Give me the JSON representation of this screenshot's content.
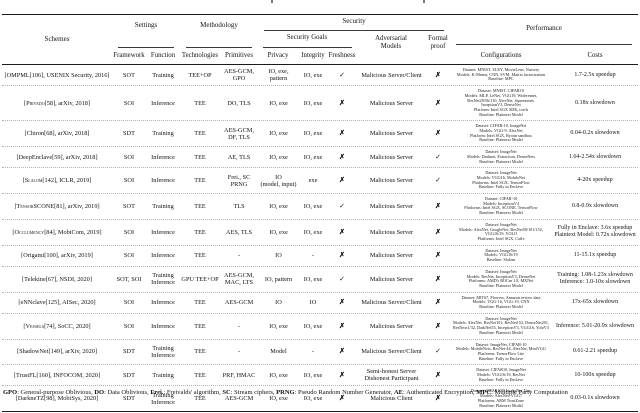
{
  "table": {
    "header": {
      "schemes": "Schemes",
      "groups": {
        "settings": "Settings",
        "methodology": "Methodology",
        "security": "Security",
        "security_goals": "Security Goals",
        "adversarial": "Adversarial\nModels",
        "formal": "Formal\nproof",
        "performance": "Performance"
      },
      "columns": {
        "framework": "Framework",
        "function": "Function",
        "technologies": "Technologies",
        "primitives": "Primitives",
        "privacy": "Privacy",
        "integrity": "Integrity",
        "freshness": "Freshness",
        "configurations": "Configurations",
        "costs": "Costs"
      }
    },
    "symbols": {
      "yes": "✓",
      "no": "✗"
    },
    "rows": [
      {
        "scheme": {
          "name": "OMPML",
          "ref": "106",
          "venue": "USENIX Security",
          "year": "2016",
          "smallcaps": false
        },
        "framework": "SOT",
        "function": "Training",
        "technologies": "TEE+OP",
        "primitives": "AES-GCM,\nGPO",
        "privacy": "IO, exe, pattern",
        "integrity": "IO, exe",
        "freshness": true,
        "adversarial": "Malicious Server/Client",
        "formal_proof": false,
        "configurations": [
          "Dataset: MNIST, SUSY, MovieLens, Nursery",
          "Models: K-Means, CNN, SVM, Matrix factorization",
          "Baseline: MPC"
        ],
        "costs": [
          "1.7-2.5x speedup"
        ]
      },
      {
        "scheme": {
          "name": "Privado",
          "ref": "58",
          "venue": "arXiv",
          "year": "2018",
          "smallcaps": true
        },
        "framework": "SOI",
        "function": "Inference",
        "technologies": "TEE",
        "primitives": "DO, TLS",
        "privacy": "IO, exe",
        "integrity": "IO, exe",
        "freshness": false,
        "adversarial": "Malicious Server",
        "formal_proof": false,
        "configurations": [
          "Dataset: MNIST, CIFAR10",
          "Models: MLP, LeNet, VGG19, Wideresnet,",
          "ResNet29/56/110, AlexNet, Squeezenet,",
          "InceptionV3, DenseNet",
          "Platform: Intel SGX SDK, torch",
          "Baseline: Plaintext Model"
        ],
        "costs": [
          "0.18x slowdown"
        ]
      },
      {
        "scheme": {
          "name": "Chiron",
          "ref": "68",
          "venue": "arXiv",
          "year": "2018",
          "smallcaps": false
        },
        "framework": "SDT",
        "function": "Training",
        "technologies": "TEE",
        "primitives": "AES-GCM,\nDF, TLS",
        "privacy": "IO, exe",
        "integrity": "IO, exe",
        "freshness": false,
        "adversarial": "Malicious Server",
        "formal_proof": false,
        "configurations": [
          "Dataset: CIFAR-10, ImageNet",
          "Models: VGG-9, AlexNet",
          "Platform: Intel SGX, Ryoan sandbox",
          "Baseline: Plaintext Model"
        ],
        "costs": [
          "0.04-0.2x slowdown"
        ]
      },
      {
        "scheme": {
          "name": "DeepEnclave",
          "ref": "59",
          "venue": "arXiv",
          "year": "2018",
          "smallcaps": false
        },
        "framework": "SOI",
        "function": "Inference",
        "technologies": "TEE",
        "primitives": "AE, TLS",
        "privacy": "IO, exe",
        "integrity": "IO, exe",
        "freshness": false,
        "adversarial": "Malicious Server",
        "formal_proof": true,
        "configurations": [
          "Dataset: ImageNet",
          "Models: Darknet, Extraction, DenseNets",
          "Baseline: Plaintext Model"
        ],
        "costs": [
          "1.64-2.54x slowdown"
        ]
      },
      {
        "scheme": {
          "name": "Slalom",
          "ref": "142",
          "venue": "ICLR",
          "year": "2019",
          "smallcaps": true
        },
        "framework": "SOI",
        "function": "Inference",
        "technologies": "TEE",
        "primitives": "Frei., SC\nPRNG",
        "privacy": "IO\n(model, input)",
        "integrity": "exe",
        "freshness": false,
        "adversarial": "Malicious Server",
        "formal_proof": true,
        "configurations": [
          "Dataset: ImageNet",
          "Models: VGG16, MobileNet",
          "Platforms: Intel SGX, TensorFlow",
          "Baseline: Fully in Enclave"
        ],
        "costs": [
          "4-20x speedup"
        ]
      },
      {
        "scheme": {
          "name": "TensorSCONE",
          "ref": "81",
          "venue": "arXiv",
          "year": "2019",
          "smallcaps": true
        },
        "framework": "SOT",
        "function": "Training",
        "technologies": "TEE",
        "primitives": "TLS",
        "privacy": "IO, exe",
        "integrity": "IO, exe",
        "freshness": true,
        "adversarial": "Malicious Server",
        "formal_proof": false,
        "configurations": [
          "Dataset: CIFAR-10",
          "Models: InceptionV4",
          "Platforms: Intel SGX, SCONE, TensorFlow",
          "Baseline: Plaintext Model"
        ],
        "costs": [
          "0.8-0.9x slowdown"
        ]
      },
      {
        "scheme": {
          "name": "Occlumency",
          "ref": "84",
          "venue": "MobiCom",
          "year": "2019",
          "smallcaps": true
        },
        "framework": "SOI",
        "function": "Inference",
        "technologies": "TEE",
        "primitives": "AES, TLS",
        "privacy": "IO, exe",
        "integrity": "IO, exe",
        "freshness": false,
        "adversarial": "Malicious Server",
        "formal_proof": false,
        "configurations": [
          "Dataset: ImageNet",
          "Models: AlexNet, GoogleNet, ResNet50/101/152,",
          "VGG16/19, YOLO",
          "Platforms: Intel SGX, Caffe"
        ],
        "costs": [
          "Fully in Enclave: 3.6x speedup",
          "Plaintext Model: 0.72x slowdown"
        ]
      },
      {
        "scheme": {
          "name": "Origami",
          "ref": "100",
          "venue": "arXiv",
          "year": "2019",
          "smallcaps": false
        },
        "framework": "SOI",
        "function": "Inference",
        "technologies": "TEE",
        "primitives": "-",
        "privacy": "IO",
        "integrity": "-",
        "freshness": false,
        "adversarial": "Malicious Server",
        "formal_proof": false,
        "configurations": [
          "Dataset: ImageNet",
          "Models: VGG16/19",
          "Baseline: Slalom"
        ],
        "costs": [
          "11-15.1x speedup"
        ]
      },
      {
        "scheme": {
          "name": "Telekine",
          "ref": "67",
          "venue": "NSDI",
          "year": "2020",
          "smallcaps": false
        },
        "framework": "SOT, SOI",
        "function": "Training\nInference",
        "technologies": "GPU TEE+OP",
        "primitives": "AES-GCM,\nMAC, LTS",
        "privacy": "IO, pattern",
        "integrity": "IO, exe",
        "freshness": true,
        "adversarial": "Malicious Server",
        "formal_proof": false,
        "configurations": [
          "Dataset: ImageNet",
          "Models: ResNet, InceptionV3, DenseNet",
          "Platforms: AMD's ROCm 1.8, MXNet",
          "Baseline: Plaintext Model"
        ],
        "costs": [
          "Training: 1.08-1.23x slowdown",
          "Inference: 1.0-10x slowdown"
        ]
      },
      {
        "scheme": {
          "name": "eNNclave",
          "ref": "125",
          "venue": "AISec",
          "year": "2020",
          "smallcaps": false
        },
        "framework": "SOI",
        "function": "Inference",
        "technologies": "TEE",
        "primitives": "AES-GCM",
        "privacy": "IO",
        "integrity": "IO",
        "freshness": false,
        "adversarial": "Malicious Server/Client",
        "formal_proof": false,
        "configurations": [
          "Dataset: MIT67, Flowers, Amazon review data",
          "Models: VGG-16, VGG-19, CNN",
          "Baseline: Plaintext Model"
        ],
        "costs": [
          "17x-65x slowdown"
        ]
      },
      {
        "scheme": {
          "name": "Vessels",
          "ref": "74",
          "venue": "SoCC",
          "year": "2020",
          "smallcaps": true
        },
        "framework": "SOI",
        "function": "Inference",
        "technologies": "TEE",
        "primitives": "-",
        "privacy": "IO, exe",
        "integrity": "IO, exe",
        "freshness": false,
        "adversarial": "Malicious Server",
        "formal_proof": false,
        "configurations": [
          "Dataset: ImageNet",
          "Models: AlexNet, ResNet101, ResNet152, DenseNet201,",
          "ResNext1/32, DarkNet53, InceptionV3, VGG16, YoloV3",
          "Baseline: Plaintext Model"
        ],
        "costs": [
          "Inference: 5.01-20.9x slowdown"
        ]
      },
      {
        "scheme": {
          "name": "ShadowNet",
          "ref": "149",
          "venue": "arXiv",
          "year": "2020",
          "smallcaps": false
        },
        "framework": "SDT",
        "function": "Training\nInference",
        "technologies": "TEE",
        "primitives": "-",
        "privacy": "Model",
        "integrity": "-",
        "freshness": false,
        "adversarial": "Malicious Server/Client",
        "formal_proof": true,
        "configurations": [
          "Dataset: ImageNet, CIFAR-10",
          "Models: MobileNets, ResNet-44, AlexNet, MiniVGG",
          "Platforms: TensorFlow Lite",
          "Baseline: Fully in Enclave"
        ],
        "costs": [
          "0.61-2.21 speedup"
        ]
      },
      {
        "scheme": {
          "name": "TrustFL",
          "ref": "160",
          "venue": "INFOCOM",
          "year": "2020",
          "smallcaps": false
        },
        "framework": "SDT",
        "function": "Training",
        "technologies": "TEE",
        "primitives": "PRF, HMAC",
        "privacy": "IO, exe",
        "integrity": "IO, exe",
        "freshness": false,
        "adversarial": "Semi-honest Server\nDishonest Participant",
        "formal_proof": false,
        "configurations": [
          "Dataset: CIFAR10, ImageNet",
          "Models: VGG16/19, ResNet",
          "Baseline: Fully in Enclave"
        ],
        "costs": [
          "10-100x speedup"
        ]
      },
      {
        "scheme": {
          "name": "DarkneTZ",
          "ref": "98",
          "venue": "MobiSys",
          "year": "2020",
          "smallcaps": false
        },
        "framework": "SDT",
        "function": "Training\nInference",
        "technologies": "TEE",
        "primitives": "AES-GCM",
        "privacy": "IO, exe",
        "integrity": "IO, exe",
        "freshness": false,
        "adversarial": "Malicious Client",
        "formal_proof": false,
        "configurations": [
          "Dataset: CIFAR100, ImageNet Tiny",
          "Models: AlexNet, VGG7",
          "Platforms: ARM TrustZone",
          "Baseline: Plaintext Model"
        ],
        "costs": [
          "0.03-0.1x slowdown"
        ]
      }
    ],
    "footnote": [
      {
        "term": "GPO",
        "desc": "General-purpose Oblivious"
      },
      {
        "term": "DO",
        "desc": "Data Oblivious"
      },
      {
        "term": "Frei.",
        "desc": "Freivalds' algorithm"
      },
      {
        "term": "SC",
        "desc": "Stream ciphers"
      },
      {
        "term": "PRNG",
        "desc": "Pseudo Random Number Generator"
      },
      {
        "term": "AE",
        "desc": "Authenticated Encryption"
      },
      {
        "term": "MPC",
        "desc": "Multiple Party Computation"
      }
    ]
  }
}
